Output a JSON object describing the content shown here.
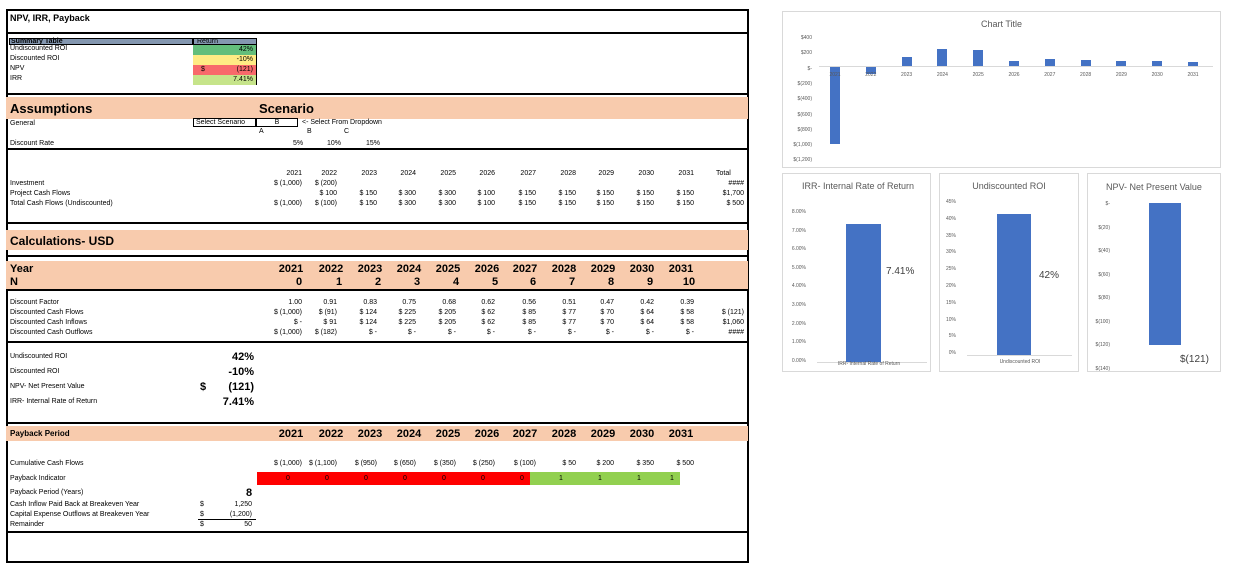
{
  "sheet": {
    "title": "NPV, IRR, Payback",
    "summary": {
      "header": "Summary Table",
      "return_header": "Return",
      "rows": [
        {
          "label": "Undiscounted ROI",
          "cur": "",
          "value": "42%",
          "color": "#63be7b"
        },
        {
          "label": "Discounted ROI",
          "cur": "",
          "value": "-10%",
          "color": "#ffeb84"
        },
        {
          "label": "NPV",
          "cur": "$",
          "value": "(121)",
          "color": "#f8696b"
        },
        {
          "label": "IRR",
          "cur": "",
          "value": "7.41%",
          "color": "#c6e48a"
        }
      ]
    },
    "assumptions": {
      "title": "Assumptions",
      "scenario_title": "Scenario",
      "general_label": "General",
      "select_label": "Select Scenario",
      "select_value": "B",
      "dropdown_note": "<- Select From Dropdown",
      "scen_letters": [
        "A",
        "B",
        "C"
      ],
      "discount_label": "Discount Rate",
      "discount_rates": [
        "5%",
        "10%",
        "15%"
      ]
    },
    "years": [
      "2021",
      "2022",
      "2023",
      "2024",
      "2025",
      "2026",
      "2027",
      "2028",
      "2029",
      "2030",
      "2031"
    ],
    "n_values": [
      "0",
      "1",
      "2",
      "3",
      "4",
      "5",
      "6",
      "7",
      "8",
      "9",
      "10"
    ],
    "cash": {
      "total_label": "Total",
      "rows": [
        {
          "label": "Investment",
          "values": [
            "$ (1,000)",
            "$ (200)",
            "",
            "",
            "",
            "",
            "",
            "",
            "",
            "",
            ""
          ],
          "total": "####"
        },
        {
          "label": "Project Cash Flows",
          "values": [
            "",
            "$ 100",
            "$ 150",
            "$ 300",
            "$ 300",
            "$ 100",
            "$ 150",
            "$ 150",
            "$ 150",
            "$ 150",
            "$ 150"
          ],
          "total": "$1,700"
        },
        {
          "label": "Total Cash Flows (Undiscounted)",
          "values": [
            "$ (1,000)",
            "$ (100)",
            "$ 150",
            "$ 300",
            "$ 300",
            "$ 100",
            "$ 150",
            "$ 150",
            "$ 150",
            "$ 150",
            "$ 150"
          ],
          "total": "$ 500"
        }
      ]
    },
    "calc": {
      "title": "Calculations- USD",
      "year_label": "Year",
      "n_label": "N",
      "rows": [
        {
          "label": "Discount Factor",
          "values": [
            "1.00",
            "0.91",
            "0.83",
            "0.75",
            "0.68",
            "0.62",
            "0.56",
            "0.51",
            "0.47",
            "0.42",
            "0.39"
          ],
          "total": ""
        },
        {
          "label": "Discounted Cash Flows",
          "values": [
            "$ (1,000)",
            "$ (91)",
            "$ 124",
            "$ 225",
            "$ 205",
            "$ 62",
            "$ 85",
            "$ 77",
            "$ 70",
            "$ 64",
            "$ 58"
          ],
          "total": "$ (121)"
        },
        {
          "label": "Discounted Cash Inflows",
          "values": [
            "$ -",
            "$ 91",
            "$ 124",
            "$ 225",
            "$ 205",
            "$ 62",
            "$ 85",
            "$ 77",
            "$ 70",
            "$ 64",
            "$ 58"
          ],
          "total": "$1,060"
        },
        {
          "label": "Discounted Cash Outflows",
          "values": [
            "$ (1,000)",
            "$ (182)",
            "$ -",
            "$ -",
            "$ -",
            "$ -",
            "$ -",
            "$ -",
            "$ -",
            "$ -",
            "$ -"
          ],
          "total": "####"
        }
      ],
      "metrics": [
        {
          "label": "Undiscounted ROI",
          "cur": "",
          "value": "42%"
        },
        {
          "label": "Discounted ROI",
          "cur": "",
          "value": "-10%"
        },
        {
          "label": "NPV- Net Present Value",
          "cur": "$",
          "value": "(121)"
        },
        {
          "label": "IRR- Internal Rate of Return",
          "cur": "",
          "value": "7.41%"
        }
      ]
    },
    "payback": {
      "title": "Payback Period",
      "cumulative_label": "Cumulative Cash Flows",
      "cumulative": [
        "$ (1,000)",
        "$ (1,100)",
        "$ (950)",
        "$ (650)",
        "$ (350)",
        "$ (250)",
        "$ (100)",
        "$ 50",
        "$ 200",
        "$ 350",
        "$ 500"
      ],
      "indicator_label": "Payback Indicator",
      "indicator": [
        "0",
        "0",
        "0",
        "0",
        "0",
        "0",
        "0",
        "1",
        "1",
        "1",
        "1"
      ],
      "period_label": "Payback Period (Years)",
      "period_value": "8",
      "details": [
        {
          "label": "Cash Inflow Paid Back at Breakeven Year",
          "cur": "$",
          "value": "1,250"
        },
        {
          "label": "Capital Expense Outflows at Breakeven Year",
          "cur": "$",
          "value": "(1,200)"
        },
        {
          "label": "Remainder",
          "cur": "$",
          "value": "50"
        }
      ]
    }
  },
  "charts": {
    "main": {
      "title": "Chart Title",
      "yticks": [
        "$400",
        "$200",
        "$-",
        "$(200)",
        "$(400)",
        "$(600)",
        "$(800)",
        "$(1,000)",
        "$(1,200)"
      ],
      "categories": [
        "2021",
        "2022",
        "2023",
        "2024",
        "2025",
        "2026",
        "2027",
        "2028",
        "2029",
        "2030",
        "2031"
      ]
    },
    "irr": {
      "title": "IRR- Internal Rate of Return",
      "yticks": [
        "8.00%",
        "7.00%",
        "6.00%",
        "5.00%",
        "4.00%",
        "3.00%",
        "2.00%",
        "1.00%",
        "0.00%"
      ],
      "category": "IRR- Internal Rate of Return",
      "label": "7.41%"
    },
    "roi": {
      "title": "Undiscounted ROI",
      "yticks": [
        "45%",
        "40%",
        "35%",
        "30%",
        "25%",
        "20%",
        "15%",
        "10%",
        "5%",
        "0%"
      ],
      "category": "Undiscounted ROI",
      "label": "42%"
    },
    "npv": {
      "title": "NPV- Net Present Value",
      "yticks": [
        "$-",
        "$(20)",
        "$(40)",
        "$(60)",
        "$(80)",
        "$(100)",
        "$(120)",
        "$(140)"
      ],
      "label": "$(121)"
    }
  },
  "chart_data": [
    {
      "type": "bar",
      "title": "Chart Title",
      "categories": [
        "2021",
        "2022",
        "2023",
        "2024",
        "2025",
        "2026",
        "2027",
        "2028",
        "2029",
        "2030",
        "2031"
      ],
      "values": [
        -1000,
        -91,
        124,
        225,
        205,
        62,
        85,
        77,
        70,
        64,
        58
      ],
      "ylim": [
        -1200,
        400
      ],
      "xlabel": "",
      "ylabel": ""
    },
    {
      "type": "bar",
      "title": "IRR- Internal Rate of Return",
      "categories": [
        "IRR- Internal Rate of Return"
      ],
      "values": [
        0.0741
      ],
      "ylim": [
        0,
        0.08
      ]
    },
    {
      "type": "bar",
      "title": "Undiscounted ROI",
      "categories": [
        "Undiscounted ROI"
      ],
      "values": [
        0.42
      ],
      "ylim": [
        0,
        0.45
      ]
    },
    {
      "type": "bar",
      "title": "NPV- Net Present Value",
      "categories": [
        ""
      ],
      "values": [
        -121
      ],
      "ylim": [
        -140,
        0
      ]
    }
  ]
}
